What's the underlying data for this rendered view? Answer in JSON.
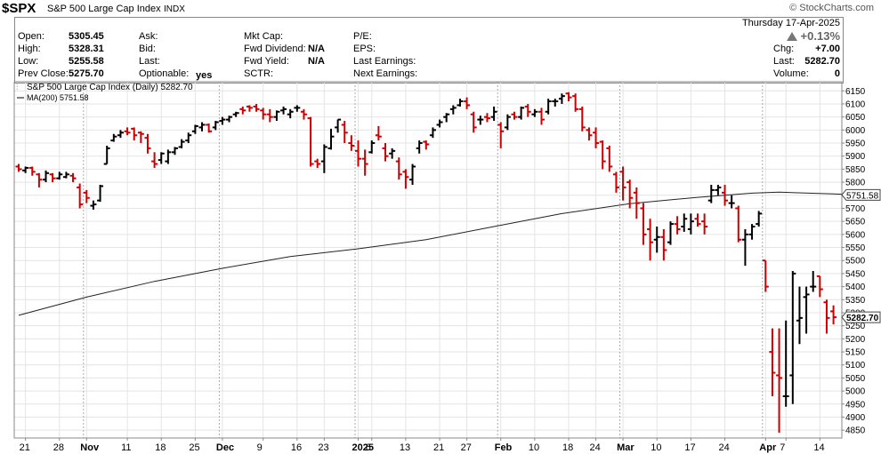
{
  "header": {
    "symbol": "$SPX",
    "description": "S&P 500 Large Cap Index",
    "exchange": "INDX",
    "brand": "© StockCharts.com"
  },
  "info": {
    "open_label": "Open:",
    "open": "5305.45",
    "high_label": "High:",
    "high": "5328.31",
    "low_label": "Low:",
    "low": "5255.58",
    "prev_close_label": "Prev Close:",
    "prev_close": "5275.70",
    "ask_label": "Ask:",
    "bid_label": "Bid:",
    "last_label": "Last:",
    "optionable_label": "Optionable:",
    "optionable": "yes",
    "mkt_cap_label": "Mkt Cap:",
    "fwd_dividend_label": "Fwd Dividend:",
    "fwd_dividend": "N/A",
    "fwd_yield_label": "Fwd Yield:",
    "fwd_yield": "N/A",
    "sctr_label": "SCTR:",
    "pe_label": "P/E:",
    "eps_label": "EPS:",
    "last_earnings_label": "Last Earnings:",
    "next_earnings_label": "Next Earnings:",
    "date": "Thursday  17-Apr-2025",
    "change_pct": "+0.13%",
    "chg_label": "Chg:",
    "chg": "+7.00",
    "last2_label": "Last:",
    "last2": "5282.70",
    "volume_label": "Volume:",
    "volume": "0"
  },
  "chart_data": {
    "type": "ohlc",
    "title": "S&P 500 Large Cap Index (Daily) 5282.70",
    "ma_label": "MA(200) 5751.58",
    "ylim": [
      4820,
      6185
    ],
    "yticks": [
      4850,
      4900,
      4950,
      5000,
      5050,
      5100,
      5150,
      5200,
      5250,
      5300,
      5350,
      5400,
      5450,
      5500,
      5550,
      5600,
      5650,
      5700,
      5750,
      5800,
      5850,
      5900,
      5950,
      6000,
      6050,
      6100,
      6150
    ],
    "y_labels": [
      "4850",
      "4900",
      "4950",
      "5000",
      "5050",
      "5100",
      "5150",
      "5200",
      "5250",
      "5300",
      "5350",
      "5400",
      "5450",
      "5500",
      "5550",
      "5600",
      "5650",
      "5700",
      "5750",
      "5800",
      "5850",
      "5900",
      "5950",
      "6000",
      "6050",
      "6100",
      "6150"
    ],
    "x_ticks": [
      {
        "i": 1,
        "label": "21",
        "bold": false
      },
      {
        "i": 6,
        "label": "28",
        "bold": false
      },
      {
        "i": 10,
        "label": "Nov",
        "bold": true
      },
      {
        "i": 16,
        "label": "11",
        "bold": false
      },
      {
        "i": 21,
        "label": "18",
        "bold": false
      },
      {
        "i": 26,
        "label": "25",
        "bold": false
      },
      {
        "i": 30,
        "label": "Dec",
        "bold": true
      },
      {
        "i": 36,
        "label": "9",
        "bold": false
      },
      {
        "i": 41,
        "label": "16",
        "bold": false
      },
      {
        "i": 45,
        "label": "23",
        "bold": false
      },
      {
        "i": 50,
        "label": "2025",
        "bold": true
      },
      {
        "i": 52,
        "label": "6",
        "bold": false
      },
      {
        "i": 57,
        "label": "13",
        "bold": false
      },
      {
        "i": 62,
        "label": "21",
        "bold": false
      },
      {
        "i": 66,
        "label": "27",
        "bold": false
      },
      {
        "i": 71,
        "label": "Feb",
        "bold": true
      },
      {
        "i": 76,
        "label": "10",
        "bold": false
      },
      {
        "i": 81,
        "label": "18",
        "bold": false
      },
      {
        "i": 85,
        "label": "24",
        "bold": false
      },
      {
        "i": 89,
        "label": "Mar",
        "bold": true
      },
      {
        "i": 94,
        "label": "10",
        "bold": false
      },
      {
        "i": 99,
        "label": "17",
        "bold": false
      },
      {
        "i": 104,
        "label": "24",
        "bold": false
      },
      {
        "i": 110,
        "label": "Apr",
        "bold": true
      },
      {
        "i": 113,
        "label": "7",
        "bold": false
      },
      {
        "i": 118,
        "label": "14",
        "bold": false
      }
    ],
    "month_lines": [
      10,
      30,
      50,
      71,
      89,
      110
    ],
    "ma200": [
      [
        0,
        5290
      ],
      [
        10,
        5360
      ],
      [
        20,
        5420
      ],
      [
        30,
        5470
      ],
      [
        40,
        5515
      ],
      [
        50,
        5545
      ],
      [
        60,
        5580
      ],
      [
        70,
        5630
      ],
      [
        80,
        5680
      ],
      [
        90,
        5718
      ],
      [
        100,
        5742
      ],
      [
        108,
        5758
      ],
      [
        112,
        5762
      ],
      [
        120,
        5755
      ],
      [
        123,
        5751.58
      ]
    ],
    "ohlc": [
      [
        5860,
        5870,
        5840,
        5850
      ],
      [
        5845,
        5860,
        5835,
        5855
      ],
      [
        5855,
        5860,
        5825,
        5840
      ],
      [
        5830,
        5835,
        5780,
        5810
      ],
      [
        5810,
        5845,
        5800,
        5835
      ],
      [
        5830,
        5835,
        5800,
        5815
      ],
      [
        5815,
        5840,
        5810,
        5830
      ],
      [
        5820,
        5840,
        5815,
        5830
      ],
      [
        5825,
        5835,
        5800,
        5815
      ],
      [
        5780,
        5795,
        5700,
        5715
      ],
      [
        5760,
        5770,
        5720,
        5740
      ],
      [
        5710,
        5730,
        5695,
        5715
      ],
      [
        5730,
        5790,
        5725,
        5785
      ],
      [
        5870,
        5940,
        5870,
        5930
      ],
      [
        5960,
        5985,
        5955,
        5975
      ],
      [
        5980,
        6000,
        5970,
        5990
      ],
      [
        5995,
        6010,
        5980,
        5990
      ],
      [
        6005,
        6010,
        5960,
        5980
      ],
      [
        5990,
        5995,
        5950,
        5985
      ],
      [
        5970,
        5985,
        5910,
        5930
      ],
      [
        5880,
        5915,
        5855,
        5870
      ],
      [
        5885,
        5915,
        5870,
        5910
      ],
      [
        5880,
        5925,
        5870,
        5915
      ],
      [
        5915,
        5935,
        5905,
        5930
      ],
      [
        5935,
        5965,
        5930,
        5955
      ],
      [
        5960,
        5990,
        5950,
        5980
      ],
      [
        5995,
        6020,
        5985,
        6015
      ],
      [
        6010,
        6030,
        5995,
        6020
      ],
      [
        6020,
        6025,
        5990,
        5995
      ],
      [
        6010,
        6035,
        6000,
        6030
      ],
      [
        6035,
        6050,
        6020,
        6040
      ],
      [
        6040,
        6055,
        6030,
        6050
      ],
      [
        6060,
        6070,
        6050,
        6065
      ],
      [
        6080,
        6090,
        6060,
        6075
      ],
      [
        6090,
        6095,
        6070,
        6085
      ],
      [
        6090,
        6100,
        6070,
        6080
      ],
      [
        6075,
        6085,
        6040,
        6060
      ],
      [
        6060,
        6080,
        6030,
        6050
      ],
      [
        6050,
        6075,
        6035,
        6070
      ],
      [
        6075,
        6090,
        6060,
        6080
      ],
      [
        6060,
        6080,
        6045,
        6070
      ],
      [
        6085,
        6095,
        6070,
        6085
      ],
      [
        6070,
        6080,
        6040,
        6060
      ],
      [
        6045,
        6050,
        5860,
        5870
      ],
      [
        5880,
        5890,
        5855,
        5870
      ],
      [
        5880,
        5945,
        5835,
        5935
      ],
      [
        5930,
        6005,
        5925,
        5975
      ],
      [
        6010,
        6040,
        5990,
        6040
      ],
      [
        6020,
        6035,
        5950,
        5990
      ],
      [
        5950,
        5980,
        5920,
        5940
      ],
      [
        5920,
        5960,
        5860,
        5890
      ],
      [
        5890,
        5925,
        5825,
        5870
      ],
      [
        5915,
        5960,
        5910,
        5950
      ],
      [
        5980,
        6015,
        5960,
        5975
      ],
      [
        5930,
        5950,
        5880,
        5900
      ],
      [
        5910,
        5930,
        5890,
        5920
      ],
      [
        5880,
        5895,
        5810,
        5830
      ],
      [
        5840,
        5850,
        5775,
        5820
      ],
      [
        5810,
        5870,
        5790,
        5860
      ],
      [
        5930,
        5960,
        5910,
        5950
      ],
      [
        5955,
        5960,
        5925,
        5945
      ],
      [
        5980,
        6010,
        5970,
        6000
      ],
      [
        6020,
        6040,
        6010,
        6030
      ],
      [
        6050,
        6065,
        6030,
        6060
      ],
      [
        6080,
        6095,
        6060,
        6085
      ],
      [
        6095,
        6120,
        6090,
        6110
      ],
      [
        6110,
        6125,
        6080,
        6095
      ],
      [
        6060,
        6070,
        5990,
        6010
      ],
      [
        6040,
        6055,
        6020,
        6040
      ],
      [
        6050,
        6065,
        6030,
        6045
      ],
      [
        6050,
        6090,
        6035,
        6070
      ],
      [
        6020,
        6030,
        5930,
        5995
      ],
      [
        6010,
        6060,
        6000,
        6050
      ],
      [
        6060,
        6070,
        6040,
        6050
      ],
      [
        6050,
        6090,
        6040,
        6085
      ],
      [
        6090,
        6100,
        6050,
        6070
      ],
      [
        6060,
        6080,
        6050,
        6070
      ],
      [
        6070,
        6085,
        6020,
        6040
      ],
      [
        6070,
        6120,
        6060,
        6110
      ],
      [
        6110,
        6120,
        6090,
        6110
      ],
      [
        6120,
        6140,
        6100,
        6130
      ],
      [
        6140,
        6145,
        6110,
        6125
      ],
      [
        6130,
        6140,
        6070,
        6080
      ],
      [
        6080,
        6090,
        5995,
        6010
      ],
      [
        6000,
        6010,
        5960,
        5980
      ],
      [
        5990,
        6010,
        5930,
        5950
      ],
      [
        5955,
        5960,
        5850,
        5880
      ],
      [
        5930,
        5940,
        5840,
        5860
      ],
      [
        5830,
        5840,
        5760,
        5780
      ],
      [
        5840,
        5860,
        5730,
        5780
      ],
      [
        5800,
        5810,
        5700,
        5740
      ],
      [
        5760,
        5780,
        5660,
        5720
      ],
      [
        5700,
        5720,
        5560,
        5600
      ],
      [
        5620,
        5660,
        5500,
        5570
      ],
      [
        5580,
        5630,
        5530,
        5590
      ],
      [
        5590,
        5620,
        5500,
        5540
      ],
      [
        5570,
        5650,
        5560,
        5640
      ],
      [
        5640,
        5670,
        5600,
        5620
      ],
      [
        5630,
        5680,
        5610,
        5660
      ],
      [
        5620,
        5680,
        5600,
        5650
      ],
      [
        5660,
        5680,
        5630,
        5640
      ],
      [
        5650,
        5680,
        5600,
        5630
      ],
      [
        5730,
        5790,
        5720,
        5770
      ],
      [
        5770,
        5790,
        5750,
        5780
      ],
      [
        5760,
        5790,
        5710,
        5730
      ],
      [
        5720,
        5750,
        5700,
        5720
      ],
      [
        5700,
        5710,
        5570,
        5580
      ],
      [
        5580,
        5620,
        5480,
        5600
      ],
      [
        5600,
        5640,
        5580,
        5630
      ],
      [
        5640,
        5690,
        5630,
        5680
      ],
      [
        5500,
        5500,
        5380,
        5400
      ],
      [
        5150,
        5240,
        4980,
        5070
      ],
      [
        5060,
        5240,
        4840,
        5050
      ],
      [
        4980,
        5270,
        4940,
        4980
      ],
      [
        5060,
        5460,
        4950,
        5450
      ],
      [
        5270,
        5400,
        5180,
        5280
      ],
      [
        5360,
        5400,
        5220,
        5370
      ],
      [
        5400,
        5460,
        5380,
        5400
      ],
      [
        5440,
        5440,
        5360,
        5390
      ],
      [
        5340,
        5350,
        5220,
        5280
      ],
      [
        5305.45,
        5328.31,
        5255.58,
        5282.7
      ]
    ]
  }
}
